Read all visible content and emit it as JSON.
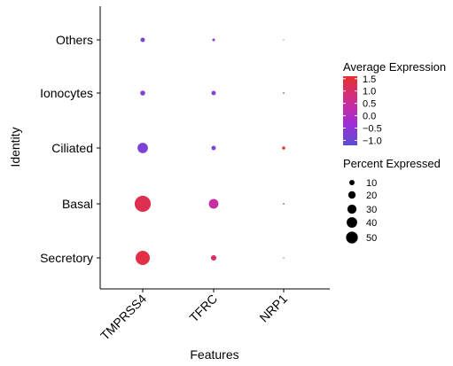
{
  "chart_data": {
    "type": "dotplot",
    "xlabel": "Features",
    "ylabel": "Identity",
    "features": [
      "TMPRSS4",
      "TFRC",
      "NRP1"
    ],
    "identities": [
      "Others",
      "Ionocytes",
      "Ciliated",
      "Basal",
      "Secretory"
    ],
    "points": [
      {
        "identity": "Others",
        "feature": "TMPRSS4",
        "avg_expression": -0.7,
        "pct_expressed": 4
      },
      {
        "identity": "Others",
        "feature": "TFRC",
        "avg_expression": -0.6,
        "pct_expressed": 1.5
      },
      {
        "identity": "Others",
        "feature": "NRP1",
        "avg_expression": 0.9,
        "pct_expressed": 0.2
      },
      {
        "identity": "Ionocytes",
        "feature": "TMPRSS4",
        "avg_expression": -0.6,
        "pct_expressed": 5
      },
      {
        "identity": "Ionocytes",
        "feature": "TFRC",
        "avg_expression": -0.5,
        "pct_expressed": 4
      },
      {
        "identity": "Ionocytes",
        "feature": "NRP1",
        "avg_expression": 1.3,
        "pct_expressed": 0.5
      },
      {
        "identity": "Ciliated",
        "feature": "TMPRSS4",
        "avg_expression": -0.7,
        "pct_expressed": 22
      },
      {
        "identity": "Ciliated",
        "feature": "TFRC",
        "avg_expression": -0.7,
        "pct_expressed": 4
      },
      {
        "identity": "Ciliated",
        "feature": "NRP1",
        "avg_expression": 1.6,
        "pct_expressed": 2
      },
      {
        "identity": "Basal",
        "feature": "TMPRSS4",
        "avg_expression": 1.3,
        "pct_expressed": 53
      },
      {
        "identity": "Basal",
        "feature": "TFRC",
        "avg_expression": 0.6,
        "pct_expressed": 19
      },
      {
        "identity": "Basal",
        "feature": "NRP1",
        "avg_expression": -1.0,
        "pct_expressed": 0.5
      },
      {
        "identity": "Secretory",
        "feature": "TMPRSS4",
        "avg_expression": 1.4,
        "pct_expressed": 41
      },
      {
        "identity": "Secretory",
        "feature": "TFRC",
        "avg_expression": 1.2,
        "pct_expressed": 6
      },
      {
        "identity": "Secretory",
        "feature": "NRP1",
        "avg_expression": 1.2,
        "pct_expressed": 0.3
      }
    ],
    "color_legend": {
      "title": "Average Expression",
      "ticks": [
        1.5,
        1.0,
        0.5,
        0.0,
        -0.5,
        -1.0
      ],
      "tick_labels": [
        "1.5",
        "1.0",
        "0.5",
        "0.0",
        "−0.5",
        "−1.0"
      ],
      "range": [
        -1.2,
        1.6
      ],
      "low_color": "#5a4fcf",
      "mid_color": "#b22ee0",
      "high_color": "#e8302f"
    },
    "size_legend": {
      "title": "Percent Expressed",
      "values": [
        10,
        20,
        30,
        40,
        50
      ],
      "labels": [
        "10",
        "20",
        "30",
        "40",
        "50"
      ]
    }
  }
}
